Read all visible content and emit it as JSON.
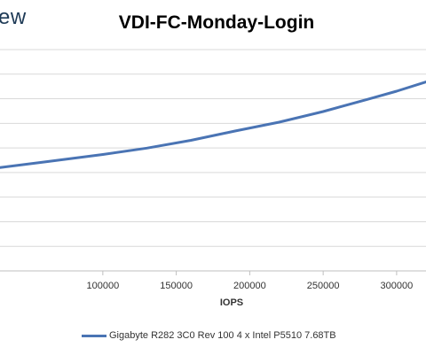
{
  "logo_text": "ew",
  "chart_data": {
    "type": "line",
    "title": "VDI-FC-Monday-Login",
    "xlabel": "IOPS",
    "ylabel": "",
    "xlim": [
      30000,
      320000
    ],
    "ylim": [
      0,
      1
    ],
    "x_ticks": [
      "100000",
      "150000",
      "200000",
      "250000",
      "300000"
    ],
    "x_tick_values": [
      100000,
      150000,
      200000,
      250000,
      300000
    ],
    "grid": true,
    "legend_position": "bottom",
    "colors": {
      "series": "#4a74b4",
      "grid": "#d9d9d9"
    },
    "series": [
      {
        "name": "Gigabyte R282 3C0 Rev 100 4 x Intel P5510 7.68TB",
        "x": [
          30000,
          60000,
          100000,
          130000,
          160000,
          190000,
          220000,
          250000,
          280000,
          300000,
          320000
        ],
        "y": [
          0.467,
          0.492,
          0.526,
          0.555,
          0.59,
          0.632,
          0.672,
          0.72,
          0.775,
          0.812,
          0.854
        ]
      }
    ]
  }
}
